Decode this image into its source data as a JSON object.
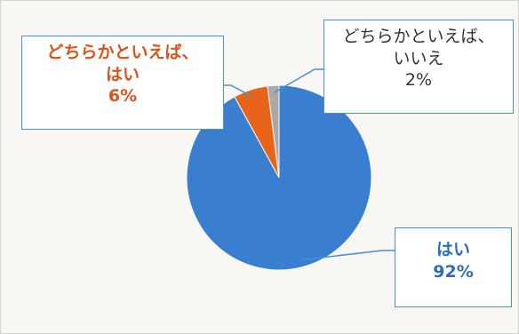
{
  "chart_data": {
    "type": "pie",
    "slices": [
      {
        "name": "はい",
        "value": 92,
        "label": "はい",
        "value_label": "92%",
        "color": "#3a7fcf",
        "label_color": "#2c6fb8"
      },
      {
        "name": "どちらかといえば、はい",
        "value": 6,
        "label": "どちらかといえば、はい",
        "label_line1": "どちらかといえば、",
        "label_line2": "はい",
        "value_label": "6%",
        "color": "#e8641b",
        "label_color": "#d9541a"
      },
      {
        "name": "どちらかといえば、いいえ",
        "value": 2,
        "label": "どちらかといえば、いいえ",
        "label_line1": "どちらかといえば、",
        "label_line2": "いいえ",
        "value_label": "2%",
        "color": "#a9aaa8",
        "label_color": "#333333"
      }
    ],
    "start_angle_deg": 0,
    "direction": "clockwise",
    "legend": "none"
  }
}
